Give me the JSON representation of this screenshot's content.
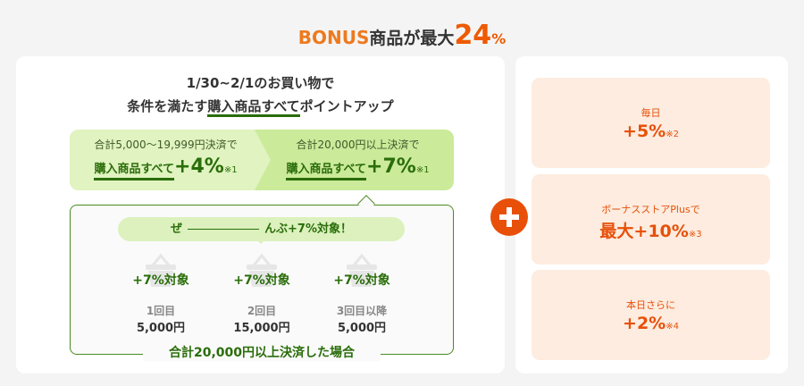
{
  "header": {
    "bonus": "BONUS",
    "text": "商品が最大",
    "max": "24",
    "pct": "%"
  },
  "left": {
    "line1": "1/30~2/1のお買い物で",
    "line2_pre": "条件を満たす",
    "line2_ul": "購入商品すべて",
    "line2_post": "ポイントアップ",
    "tiers": [
      {
        "cond": "合計5,000〜19,999円決済で",
        "label": "購入商品すべて",
        "rate": "+4%",
        "note": "※1"
      },
      {
        "cond": "合計20,000円以上決済で",
        "label": "購入商品すべて",
        "rate": "+7%",
        "note": "※1"
      }
    ],
    "pill_pre": "ぜ",
    "pill_post": "んぶ+7%対象！",
    "purchases": [
      {
        "badge": "+7%対象",
        "order": "1回目",
        "amount": "5,000円"
      },
      {
        "badge": "+7%対象",
        "order": "2回目",
        "amount": "15,000円"
      },
      {
        "badge": "+7%対象",
        "order": "3回目以降",
        "amount": "5,000円"
      }
    ],
    "footer": "合計20,000円以上決済した場合"
  },
  "right": {
    "items": [
      {
        "sub": "毎日",
        "rate": "+5%",
        "note": "※2"
      },
      {
        "sub": "ボーナスストアPlusで",
        "rate": "最大+10%",
        "note": "※3"
      },
      {
        "sub": "本日さらに",
        "rate": "+2%",
        "note": "※4"
      }
    ]
  },
  "colors": {
    "green": "#2a6d0a",
    "orange": "#e8500a",
    "peach": "#fdecdf"
  },
  "icons": {
    "plus": "plus-icon",
    "basket": "basket-icon"
  }
}
